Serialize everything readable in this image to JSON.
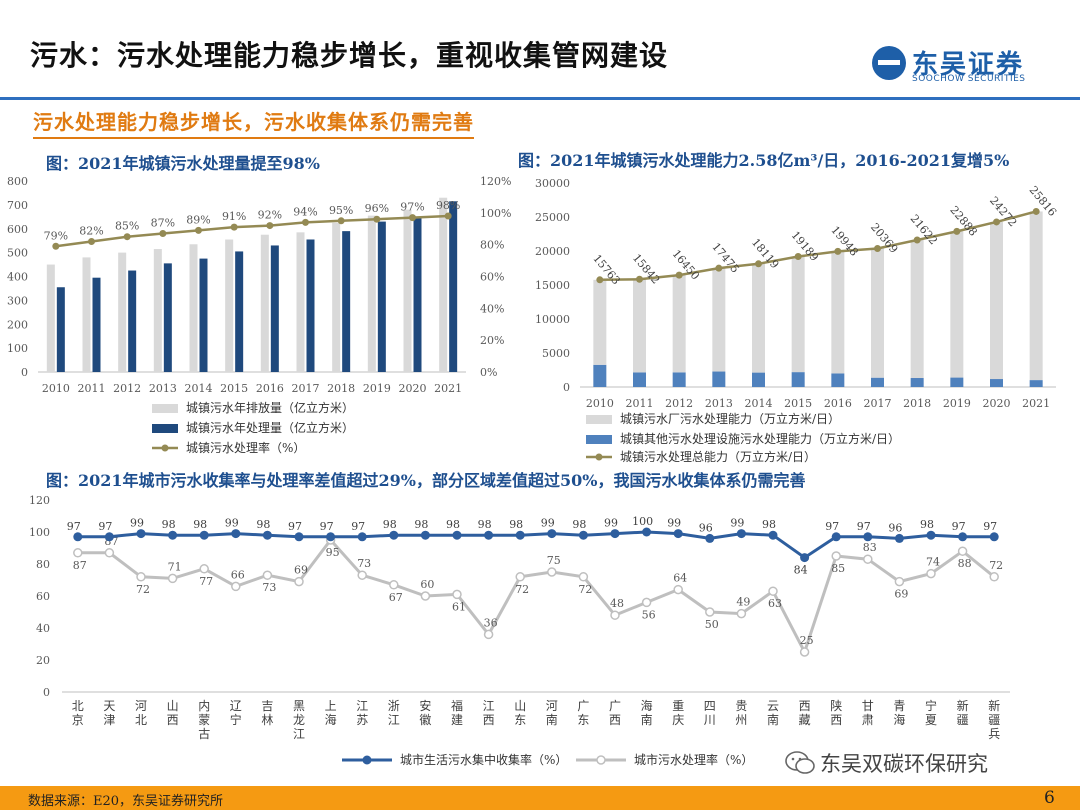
{
  "header": {
    "title": "污水：污水处理能力稳步增长，重视收集管网建设",
    "logo_cn": "东吴证券",
    "logo_en": "SOOCHOW SECURITIES",
    "subheading": "污水处理能力稳步增长，污水收集体系仍需完善"
  },
  "footer": {
    "source": "数据来源：E20，东吴证券研究所",
    "page": "6",
    "wechat": "东吴双碳环保研究"
  },
  "colors": {
    "gray_bar": "#d9d9d9",
    "navy_bar": "#1f497d",
    "olive_line": "#948a54",
    "blue_bar": "#4f81bd",
    "orange": "#f59a12",
    "line_blue": "#2e5e9e",
    "line_gray": "#bfbfbf"
  },
  "chart_data": [
    {
      "type": "bar",
      "title": "图：2021年城镇污水处理量提至98%",
      "categories": [
        "2010",
        "2011",
        "2012",
        "2013",
        "2014",
        "2015",
        "2016",
        "2017",
        "2018",
        "2019",
        "2020",
        "2021"
      ],
      "series": [
        {
          "name": "城镇污水年排放量（亿立方米）",
          "kind": "bar",
          "axis": "left",
          "values": [
            450,
            480,
            500,
            515,
            535,
            555,
            575,
            585,
            625,
            655,
            680,
            730
          ]
        },
        {
          "name": "城镇污水年处理量（亿立方米）",
          "kind": "bar",
          "axis": "left",
          "values": [
            355,
            395,
            425,
            455,
            475,
            505,
            530,
            555,
            590,
            630,
            645,
            715
          ]
        },
        {
          "name": "城镇污水处理率（%）",
          "kind": "line",
          "axis": "right",
          "values": [
            79,
            82,
            85,
            87,
            89,
            91,
            92,
            94,
            95,
            96,
            97,
            98
          ],
          "labels": [
            "79%",
            "82%",
            "85%",
            "87%",
            "89%",
            "91%",
            "92%",
            "94%",
            "95%",
            "96%",
            "97%",
            "98%"
          ]
        }
      ],
      "ylim": [
        0,
        800
      ],
      "y_ticks": [
        "0",
        "100",
        "200",
        "300",
        "400",
        "500",
        "600",
        "700",
        "800"
      ],
      "y2lim": [
        0,
        120
      ],
      "y2_ticks": [
        "0%",
        "20%",
        "40%",
        "60%",
        "80%",
        "100%",
        "120%"
      ],
      "legend": "bottom"
    },
    {
      "type": "bar",
      "title": "图：2021年城镇污水处理能力2.58亿m³/日，2016-2021复增5%",
      "categories": [
        "2010",
        "2011",
        "2012",
        "2013",
        "2014",
        "2015",
        "2016",
        "2017",
        "2018",
        "2019",
        "2020",
        "2021"
      ],
      "series": [
        {
          "name": "城镇污水厂污水处理能力（万立方米/日）",
          "kind": "bar",
          "stacked": true,
          "values": [
            12500,
            13700,
            14300,
            15200,
            16000,
            17000,
            17950,
            19000,
            20300,
            21500,
            23100,
            24800
          ]
        },
        {
          "name": "城镇其他污水处理设施污水处理能力（万立方米/日）",
          "kind": "bar",
          "stacked": true,
          "values": [
            3263,
            2142,
            2150,
            2275,
            2119,
            2189,
            1998,
            1369,
            1322,
            1388,
            1172,
            1016
          ]
        },
        {
          "name": "城镇污水处理总能力（万立方米/日）",
          "kind": "line",
          "values": [
            15763,
            15842,
            16450,
            17475,
            18119,
            19189,
            19948,
            20369,
            21622,
            22888,
            24272,
            25816
          ]
        }
      ],
      "line_labels": [
        "15763",
        "15842",
        "16450",
        "17475",
        "18119",
        "19189",
        "19948",
        "20369",
        "21622",
        "22888",
        "24272",
        "25816"
      ],
      "ylim": [
        0,
        30000
      ],
      "y_ticks": [
        "0",
        "5000",
        "10000",
        "15000",
        "20000",
        "25000",
        "30000"
      ],
      "legend": "bottom"
    },
    {
      "type": "line",
      "title": "图：2021年城市污水收集率与处理率差值超过29%，部分区域差值超过50%，我国污水收集体系仍需完善",
      "categories": [
        "北京",
        "天津",
        "河北",
        "山西",
        "内蒙古",
        "辽宁",
        "吉林",
        "黑龙江",
        "上海",
        "江苏",
        "浙江",
        "安徽",
        "福建",
        "江西",
        "山东",
        "河南",
        "广东",
        "广西",
        "海南",
        "重庆",
        "四川",
        "贵州",
        "云南",
        "西藏",
        "陕西",
        "甘肃",
        "青海",
        "宁夏",
        "新疆",
        "新疆兵"
      ],
      "series": [
        {
          "name": "城市生活污水集中收集率（%）",
          "values": [
            97,
            97,
            99,
            98,
            98,
            99,
            98,
            97,
            97,
            97,
            98,
            98,
            98,
            98,
            98,
            99,
            98,
            99,
            100,
            99,
            96,
            99,
            98,
            84,
            97,
            97,
            96,
            98,
            97,
            97
          ]
        },
        {
          "name": "城市污水处理率（%）",
          "values": [
            87,
            87,
            72,
            71,
            77,
            66,
            73,
            69,
            95,
            73,
            67,
            60,
            61,
            36,
            72,
            75,
            72,
            48,
            56,
            64,
            50,
            49,
            63,
            25,
            85,
            83,
            69,
            74,
            88,
            72
          ]
        }
      ],
      "ylim": [
        0,
        120
      ],
      "y_ticks": [
        "0",
        "20",
        "40",
        "60",
        "80",
        "100",
        "120"
      ],
      "legend": "bottom"
    }
  ]
}
